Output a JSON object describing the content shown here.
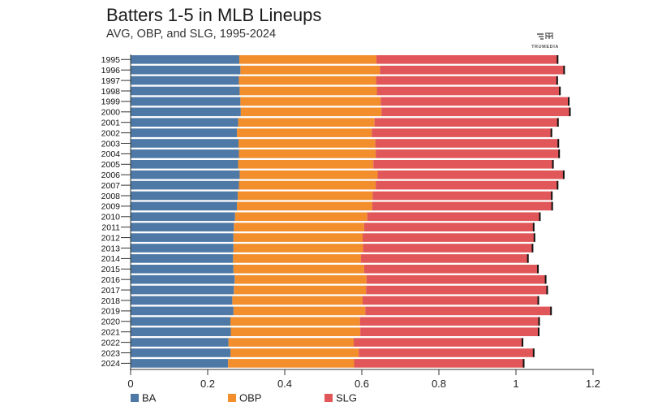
{
  "header": {
    "title": "Batters 1-5 in MLB Lineups",
    "subtitle": "AVG, OBP, and SLG, 1995-2024",
    "brand": "TRUMEDIA"
  },
  "colors": {
    "BA": "#4e79a7",
    "OBP": "#f28e2b",
    "SLG": "#e15759",
    "cap": "#111111",
    "axis": "#333333"
  },
  "chart_data": {
    "type": "bar",
    "orientation": "horizontal",
    "title": "Batters 1-5 in MLB Lineups",
    "subtitle": "AVG, OBP, and SLG, 1995-2024",
    "xlim": [
      0,
      1.2
    ],
    "xticks": [
      0,
      0.2,
      0.4,
      0.6,
      0.8,
      1,
      1.2
    ],
    "xtick_labels": [
      "0",
      "0.2",
      "0.4",
      "0.6",
      "0.8",
      "1",
      "1.2"
    ],
    "legend": [
      "BA",
      "OBP",
      "SLG"
    ],
    "legend_position": "bottom",
    "categories": [
      "1995",
      "1996",
      "1997",
      "1998",
      "1999",
      "2000",
      "2001",
      "2002",
      "2003",
      "2004",
      "2005",
      "2006",
      "2007",
      "2008",
      "2009",
      "2010",
      "2011",
      "2012",
      "2013",
      "2014",
      "2015",
      "2016",
      "2017",
      "2018",
      "2019",
      "2020",
      "2021",
      "2022",
      "2023",
      "2024"
    ],
    "series": [
      {
        "name": "BA",
        "values": [
          0.282,
          0.285,
          0.281,
          0.283,
          0.285,
          0.286,
          0.279,
          0.276,
          0.28,
          0.281,
          0.279,
          0.283,
          0.281,
          0.278,
          0.276,
          0.271,
          0.268,
          0.267,
          0.267,
          0.266,
          0.267,
          0.27,
          0.268,
          0.264,
          0.267,
          0.259,
          0.26,
          0.254,
          0.259,
          0.253
        ]
      },
      {
        "name": "OBP",
        "values": [
          0.356,
          0.362,
          0.356,
          0.356,
          0.364,
          0.365,
          0.354,
          0.35,
          0.355,
          0.355,
          0.351,
          0.358,
          0.355,
          0.35,
          0.351,
          0.343,
          0.338,
          0.335,
          0.336,
          0.332,
          0.339,
          0.342,
          0.343,
          0.338,
          0.342,
          0.336,
          0.336,
          0.325,
          0.333,
          0.327
        ]
      },
      {
        "name": "SLG",
        "values": [
          0.47,
          0.478,
          0.47,
          0.475,
          0.488,
          0.489,
          0.476,
          0.466,
          0.475,
          0.476,
          0.466,
          0.483,
          0.472,
          0.465,
          0.467,
          0.448,
          0.44,
          0.446,
          0.44,
          0.433,
          0.451,
          0.465,
          0.47,
          0.456,
          0.482,
          0.465,
          0.463,
          0.438,
          0.454,
          0.44
        ]
      }
    ]
  }
}
